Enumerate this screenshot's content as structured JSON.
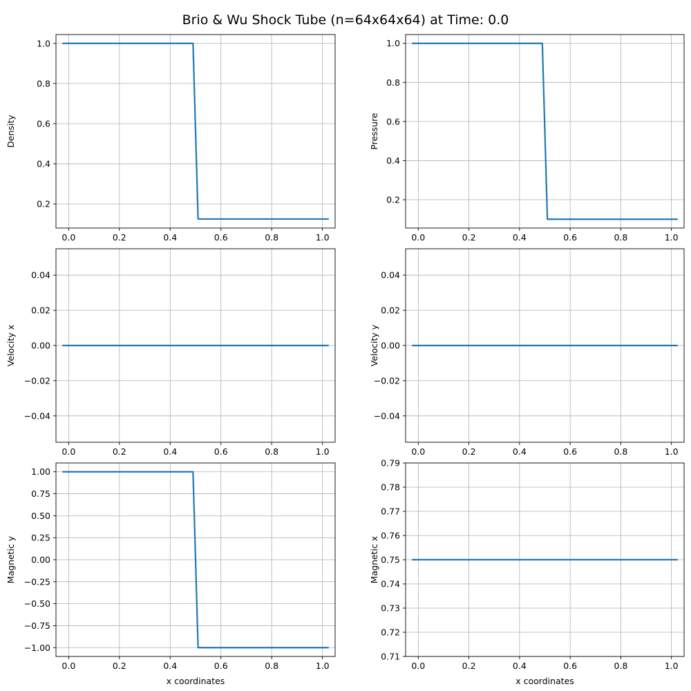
{
  "figure": {
    "title": "Brio & Wu Shock Tube (n=64x64x64) at Time: 0.0"
  },
  "chart_data": [
    {
      "type": "line",
      "title": "",
      "xlabel": "",
      "ylabel": "Density",
      "xlim": [
        -0.05,
        1.05
      ],
      "ylim": [
        0.08,
        1.044
      ],
      "xticks": [
        0.0,
        0.2,
        0.4,
        0.6,
        0.8,
        1.0
      ],
      "xtick_labels": [
        "0.0",
        "0.2",
        "0.4",
        "0.6",
        "0.8",
        "1.0"
      ],
      "yticks": [
        0.2,
        0.4,
        0.6,
        0.8,
        1.0
      ],
      "ytick_labels": [
        "0.2",
        "0.4",
        "0.6",
        "0.8",
        "1.0"
      ],
      "grid": true,
      "color": "#1f77b4",
      "series": [
        {
          "x": [
            -0.025,
            0.49,
            0.51,
            1.025
          ],
          "y": [
            1.0,
            1.0,
            0.125,
            0.125
          ]
        }
      ]
    },
    {
      "type": "line",
      "title": "",
      "xlabel": "",
      "ylabel": "Pressure",
      "xlim": [
        -0.05,
        1.05
      ],
      "ylim": [
        0.055,
        1.045
      ],
      "xticks": [
        0.0,
        0.2,
        0.4,
        0.6,
        0.8,
        1.0
      ],
      "xtick_labels": [
        "0.0",
        "0.2",
        "0.4",
        "0.6",
        "0.8",
        "1.0"
      ],
      "yticks": [
        0.2,
        0.4,
        0.6,
        0.8,
        1.0
      ],
      "ytick_labels": [
        "0.2",
        "0.4",
        "0.6",
        "0.8",
        "1.0"
      ],
      "grid": true,
      "color": "#1f77b4",
      "series": [
        {
          "x": [
            -0.025,
            0.49,
            0.51,
            1.025
          ],
          "y": [
            1.0,
            1.0,
            0.1,
            0.1
          ]
        }
      ]
    },
    {
      "type": "line",
      "title": "",
      "xlabel": "",
      "ylabel": "Velocity x",
      "xlim": [
        -0.05,
        1.05
      ],
      "ylim": [
        -0.055,
        0.055
      ],
      "xticks": [
        0.0,
        0.2,
        0.4,
        0.6,
        0.8,
        1.0
      ],
      "xtick_labels": [
        "0.0",
        "0.2",
        "0.4",
        "0.6",
        "0.8",
        "1.0"
      ],
      "yticks": [
        -0.04,
        -0.02,
        0.0,
        0.02,
        0.04
      ],
      "ytick_labels": [
        "−0.04",
        "−0.02",
        "0.00",
        "0.02",
        "0.04"
      ],
      "grid": true,
      "color": "#1f77b4",
      "series": [
        {
          "x": [
            -0.025,
            1.025
          ],
          "y": [
            0.0,
            0.0
          ]
        }
      ]
    },
    {
      "type": "line",
      "title": "",
      "xlabel": "",
      "ylabel": "Velocity y",
      "xlim": [
        -0.05,
        1.05
      ],
      "ylim": [
        -0.055,
        0.055
      ],
      "xticks": [
        0.0,
        0.2,
        0.4,
        0.6,
        0.8,
        1.0
      ],
      "xtick_labels": [
        "0.0",
        "0.2",
        "0.4",
        "0.6",
        "0.8",
        "1.0"
      ],
      "yticks": [
        -0.04,
        -0.02,
        0.0,
        0.02,
        0.04
      ],
      "ytick_labels": [
        "−0.04",
        "−0.02",
        "0.00",
        "0.02",
        "0.04"
      ],
      "grid": true,
      "color": "#1f77b4",
      "series": [
        {
          "x": [
            -0.025,
            1.025
          ],
          "y": [
            0.0,
            0.0
          ]
        }
      ]
    },
    {
      "type": "line",
      "title": "",
      "xlabel": "x coordinates",
      "ylabel": "Magnetic y",
      "xlim": [
        -0.05,
        1.05
      ],
      "ylim": [
        -1.1,
        1.1
      ],
      "xticks": [
        0.0,
        0.2,
        0.4,
        0.6,
        0.8,
        1.0
      ],
      "xtick_labels": [
        "0.0",
        "0.2",
        "0.4",
        "0.6",
        "0.8",
        "1.0"
      ],
      "yticks": [
        -1.0,
        -0.75,
        -0.5,
        -0.25,
        0.0,
        0.25,
        0.5,
        0.75,
        1.0
      ],
      "ytick_labels": [
        "−1.00",
        "−0.75",
        "−0.50",
        "−0.25",
        "0.00",
        "0.25",
        "0.50",
        "0.75",
        "1.00"
      ],
      "grid": true,
      "color": "#1f77b4",
      "series": [
        {
          "x": [
            -0.025,
            0.49,
            0.51,
            1.025
          ],
          "y": [
            1.0,
            1.0,
            -1.0,
            -1.0
          ]
        }
      ]
    },
    {
      "type": "line",
      "title": "",
      "xlabel": "x coordinates",
      "ylabel": "Magnetic x",
      "xlim": [
        -0.05,
        1.05
      ],
      "ylim": [
        0.71,
        0.79
      ],
      "xticks": [
        0.0,
        0.2,
        0.4,
        0.6,
        0.8,
        1.0
      ],
      "xtick_labels": [
        "0.0",
        "0.2",
        "0.4",
        "0.6",
        "0.8",
        "1.0"
      ],
      "yticks": [
        0.71,
        0.72,
        0.73,
        0.74,
        0.75,
        0.76,
        0.77,
        0.78,
        0.79
      ],
      "ytick_labels": [
        "0.71",
        "0.72",
        "0.73",
        "0.74",
        "0.75",
        "0.76",
        "0.77",
        "0.78",
        "0.79"
      ],
      "grid": true,
      "color": "#1f77b4",
      "series": [
        {
          "x": [
            -0.025,
            1.025
          ],
          "y": [
            0.75,
            0.75
          ]
        }
      ]
    }
  ]
}
